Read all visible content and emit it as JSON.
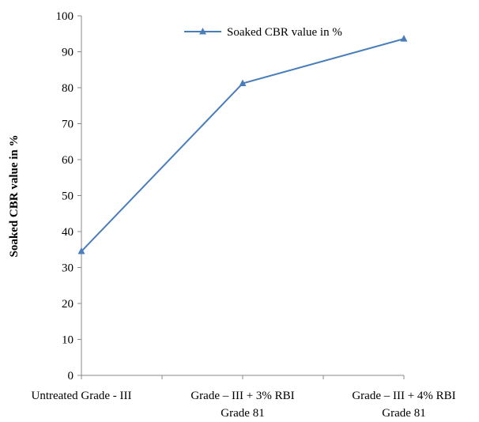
{
  "chart_data": {
    "type": "line",
    "y_label": "Soaked CBR value in %",
    "categories": [
      "Untreated Grade - III",
      "Grade – III + 3% RBI\nGrade 81",
      "Grade – III + 4% RBI\nGrade 81"
    ],
    "series": [
      {
        "name": "Soaked CBR value in %",
        "color": "#4a7ebb",
        "values": [
          34.5,
          81.2,
          93.6
        ]
      }
    ],
    "ylim": [
      0,
      100
    ],
    "yticks": [
      0,
      10,
      20,
      30,
      40,
      50,
      60,
      70,
      80,
      90,
      100
    ],
    "legend": "top"
  }
}
